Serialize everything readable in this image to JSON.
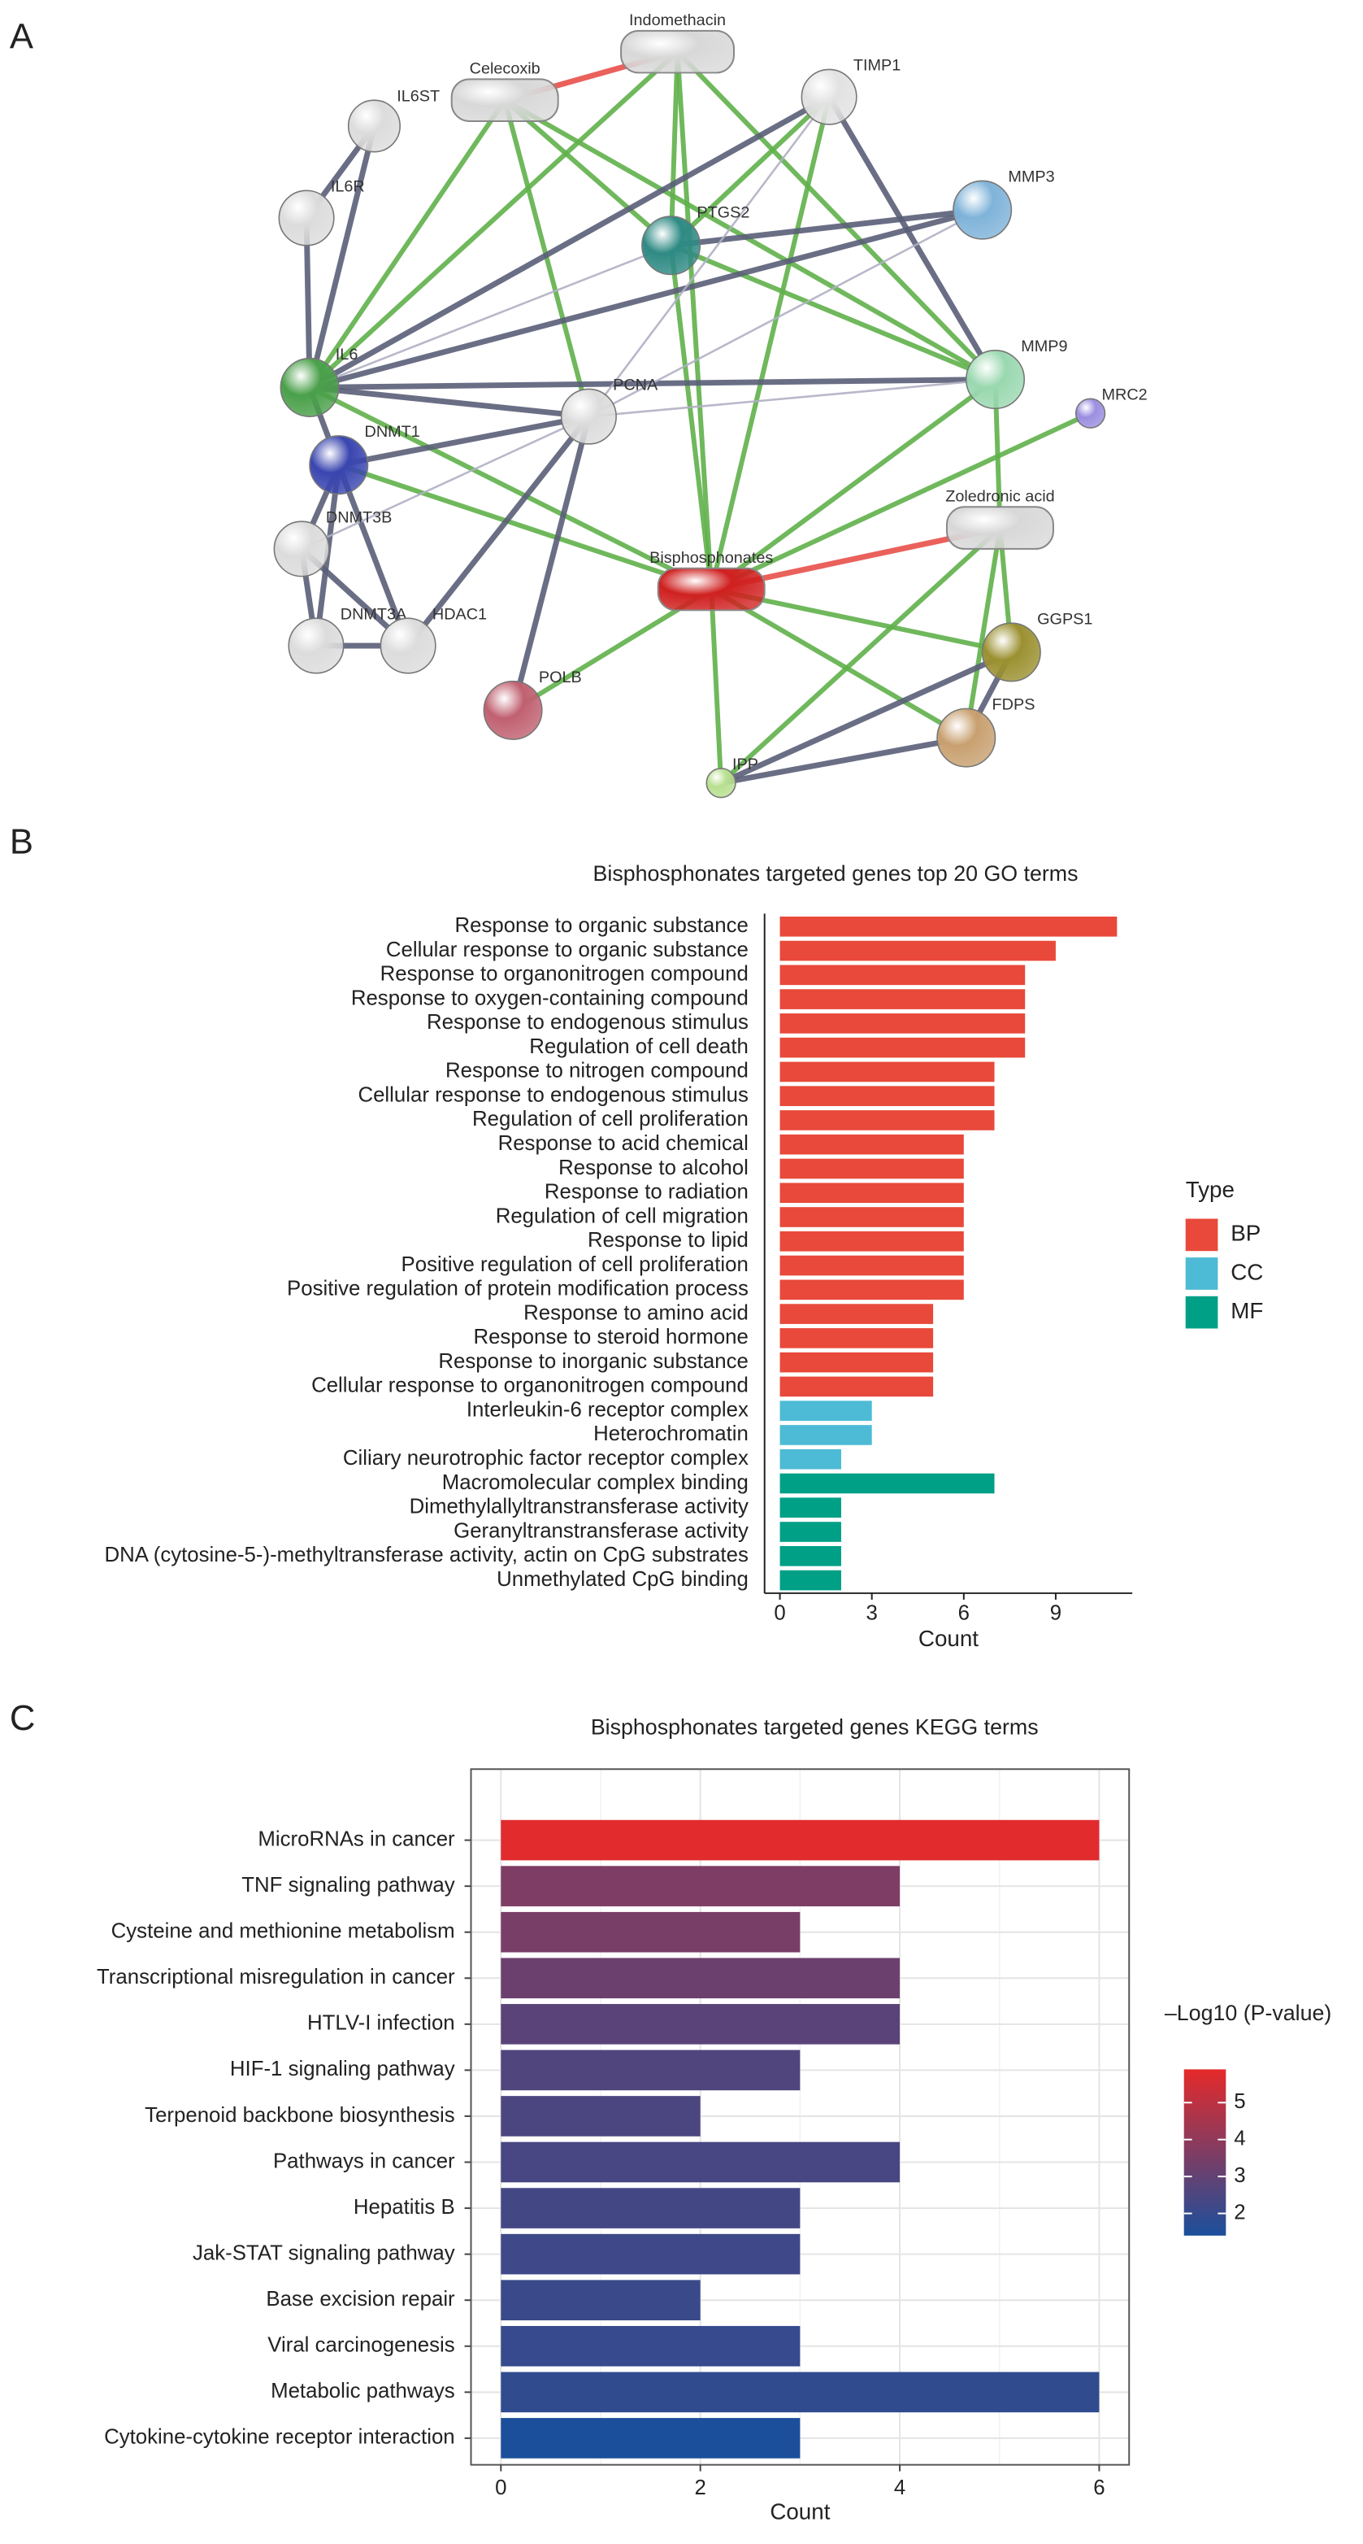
{
  "panels": [
    "A",
    "B",
    "C"
  ],
  "network": {
    "nodes": [
      "Indomethacin",
      "Celecoxib",
      "TIMP1",
      "IL6ST",
      "MMP3",
      "IL6R",
      "PTGS2",
      "IL6",
      "PCNA",
      "MMP9",
      "MRC2",
      "DNMT1",
      "Zoledronic acid",
      "DNMT3B",
      "Bisphosphonates",
      "DNMT3A",
      "HDAC1",
      "GGPS1",
      "POLB",
      "FDPS",
      "IPP"
    ]
  },
  "chart_data": [
    {
      "type": "bar",
      "orientation": "horizontal",
      "title": "Bisphosphonates targeted genes top 20 GO terms",
      "x_label": "Count",
      "legend_title": "Type",
      "categories": [
        "Response to organic substance",
        "Cellular response to organic substance",
        "Response to organonitrogen compound",
        "Response to oxygen-containing compound",
        "Response to endogenous stimulus",
        "Regulation of cell death",
        "Response to nitrogen compound",
        "Cellular response to endogenous stimulus",
        "Regulation of cell proliferation",
        "Response to acid chemical",
        "Response to alcohol",
        "Response to radiation",
        "Regulation of cell migration",
        "Response to lipid",
        "Positive regulation of cell proliferation",
        "Positive regulation of protein modification process",
        "Response to amino acid",
        "Response to steroid hormone",
        "Response to inorganic substance",
        "Cellular response to organonitrogen compound",
        "Interleukin-6 receptor complex",
        "Heterochromatin",
        "Ciliary neurotrophic factor receptor complex",
        "Macromolecular complex binding",
        "Dimethylallyltranstransferase activity",
        "Geranyltranstransferase activity",
        "DNA (cytosine-5-)-methyltransferase activity, actin on CpG substrates",
        "Unmethylated CpG binding"
      ],
      "series": [
        {
          "name": "BP",
          "color": "#e8493a",
          "values": [
            11,
            9,
            8,
            8,
            8,
            8,
            7,
            7,
            7,
            6,
            6,
            6,
            6,
            6,
            6,
            6,
            5,
            5,
            5,
            5,
            null,
            null,
            null,
            null,
            null,
            null,
            null,
            null
          ]
        },
        {
          "name": "CC",
          "color": "#4dbbd5",
          "values": [
            null,
            null,
            null,
            null,
            null,
            null,
            null,
            null,
            null,
            null,
            null,
            null,
            null,
            null,
            null,
            null,
            null,
            null,
            null,
            null,
            3,
            3,
            2,
            null,
            null,
            null,
            null,
            null
          ]
        },
        {
          "name": "MF",
          "color": "#00a087",
          "values": [
            null,
            null,
            null,
            null,
            null,
            null,
            null,
            null,
            null,
            null,
            null,
            null,
            null,
            null,
            null,
            null,
            null,
            null,
            null,
            null,
            null,
            null,
            null,
            7,
            2,
            2,
            2,
            2
          ]
        }
      ],
      "xlim": [
        -0.5,
        11.5
      ],
      "xticks": [
        0,
        3,
        6,
        9
      ]
    },
    {
      "type": "bar",
      "orientation": "horizontal",
      "title": "Bisphosphonates targeted genes KEGG terms",
      "x_label": "Count",
      "categories": [
        "MicroRNAs in cancer",
        "TNF signaling pathway",
        "Cysteine and methionine metabolism",
        "Transcriptional misregulation in cancer",
        "HTLV-I infection",
        "HIF-1 signaling pathway",
        "Terpenoid backbone biosynthesis",
        "Pathways in cancer",
        "Hepatitis B",
        "Jak-STAT signaling pathway",
        "Base excision repair",
        "Viral carcinogenesis",
        "Metabolic pathways",
        "Cytokine-cytokine receptor interaction"
      ],
      "values": [
        6,
        4,
        3,
        4,
        4,
        3,
        2,
        4,
        3,
        3,
        2,
        3,
        6,
        3
      ],
      "color_values": [
        5.8,
        3.6,
        3.5,
        3.2,
        2.8,
        2.6,
        2.5,
        2.4,
        2.3,
        2.2,
        2.1,
        2.0,
        1.9,
        1.4
      ],
      "colorbar": {
        "title": "–Log10 (P-value)",
        "lim": [
          1.4,
          5.9
        ],
        "ticks": [
          2,
          3,
          4,
          5
        ],
        "colors": [
          "#1b4f9c",
          "#e52a2a"
        ]
      },
      "xlim": [
        -0.3,
        6.3
      ],
      "xticks": [
        0,
        2,
        4,
        6
      ],
      "grid": true
    }
  ]
}
